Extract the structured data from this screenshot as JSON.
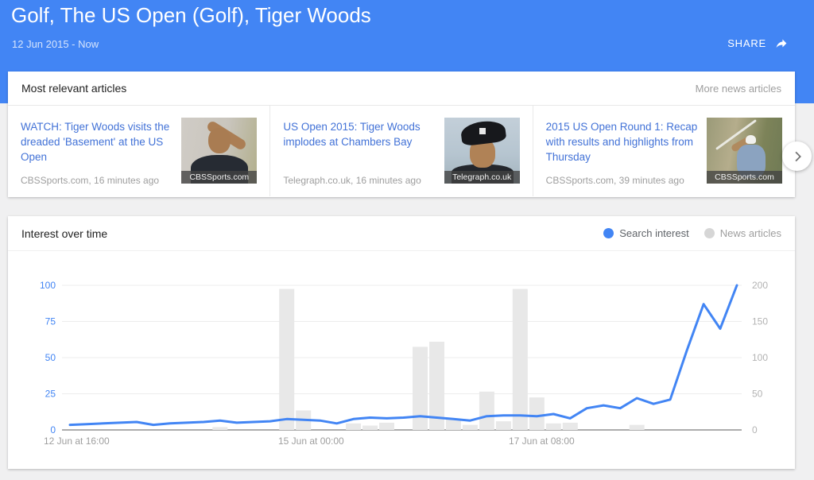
{
  "header": {
    "title": "Golf, The US Open (Golf), Tiger Woods",
    "date_range": "12 Jun 2015 - Now",
    "share_label": "SHARE"
  },
  "articles_card": {
    "title": "Most relevant articles",
    "more_link": "More news articles",
    "items": [
      {
        "title": "WATCH: Tiger Woods visits the dreaded 'Basement' at the US Open",
        "source": "CBSSports.com, 16 minutes ago",
        "thumb_caption": "CBSSports.com"
      },
      {
        "title": "US Open 2015: Tiger Woods implodes at Chambers Bay",
        "source": "Telegraph.co.uk, 16 minutes ago",
        "thumb_caption": "Telegraph.co.uk"
      },
      {
        "title": "2015 US Open Round 1: Recap with results and highlights from Thursday",
        "source": "CBSSports.com, 39 minutes ago",
        "thumb_caption": "CBSSports.com"
      }
    ]
  },
  "chart_card": {
    "title": "Interest over time",
    "legend": [
      {
        "label": "Search interest",
        "color": "#4285f4"
      },
      {
        "label": "News articles",
        "color": "#d6d6d6"
      }
    ]
  },
  "chart_data": {
    "type": "line+bar",
    "title": "Interest over time",
    "grid": true,
    "legend_position": "top-right",
    "x_tick_labels": [
      "12 Jun at 16:00",
      "15 Jun at 00:00",
      "17 Jun at 08:00"
    ],
    "left_axis": {
      "series": "Search interest",
      "ticks": [
        0,
        25,
        50,
        75,
        100
      ],
      "range": [
        0,
        100
      ],
      "color": "#4285f4"
    },
    "right_axis": {
      "series": "News articles",
      "ticks": [
        0,
        50,
        100,
        150,
        200
      ],
      "range": [
        0,
        200
      ],
      "color": "#b3b3b3"
    },
    "series": [
      {
        "name": "Search interest",
        "type": "line",
        "axis": "left",
        "color": "#4285f4",
        "values": [
          3.5,
          4,
          4.5,
          5,
          5.5,
          3.5,
          4.5,
          5,
          5.5,
          6.5,
          5,
          5.5,
          6,
          7.5,
          7,
          6.5,
          4.5,
          7.5,
          8.5,
          8,
          8.5,
          9.5,
          8.5,
          7.5,
          6.5,
          9.5,
          10,
          10,
          9.5,
          11,
          8,
          15,
          17,
          15,
          22,
          18,
          21,
          55,
          87,
          70,
          100
        ]
      },
      {
        "name": "News articles",
        "type": "bar",
        "axis": "right",
        "color": "#e8e8e8",
        "values": [
          0,
          0,
          0,
          0,
          0,
          0,
          0,
          0,
          0,
          4,
          0,
          0,
          0,
          195,
          27,
          0,
          0,
          9,
          6,
          10,
          0,
          115,
          122,
          15,
          7,
          53,
          12,
          195,
          45,
          9,
          10,
          0,
          0,
          0,
          7,
          0,
          0,
          0,
          0,
          0,
          0
        ]
      }
    ]
  },
  "colors": {
    "header_blue": "#4285f4",
    "link_blue": "#4272d7",
    "bar_gray": "#e8e8e8",
    "axis_gray": "#9e9e9e"
  }
}
